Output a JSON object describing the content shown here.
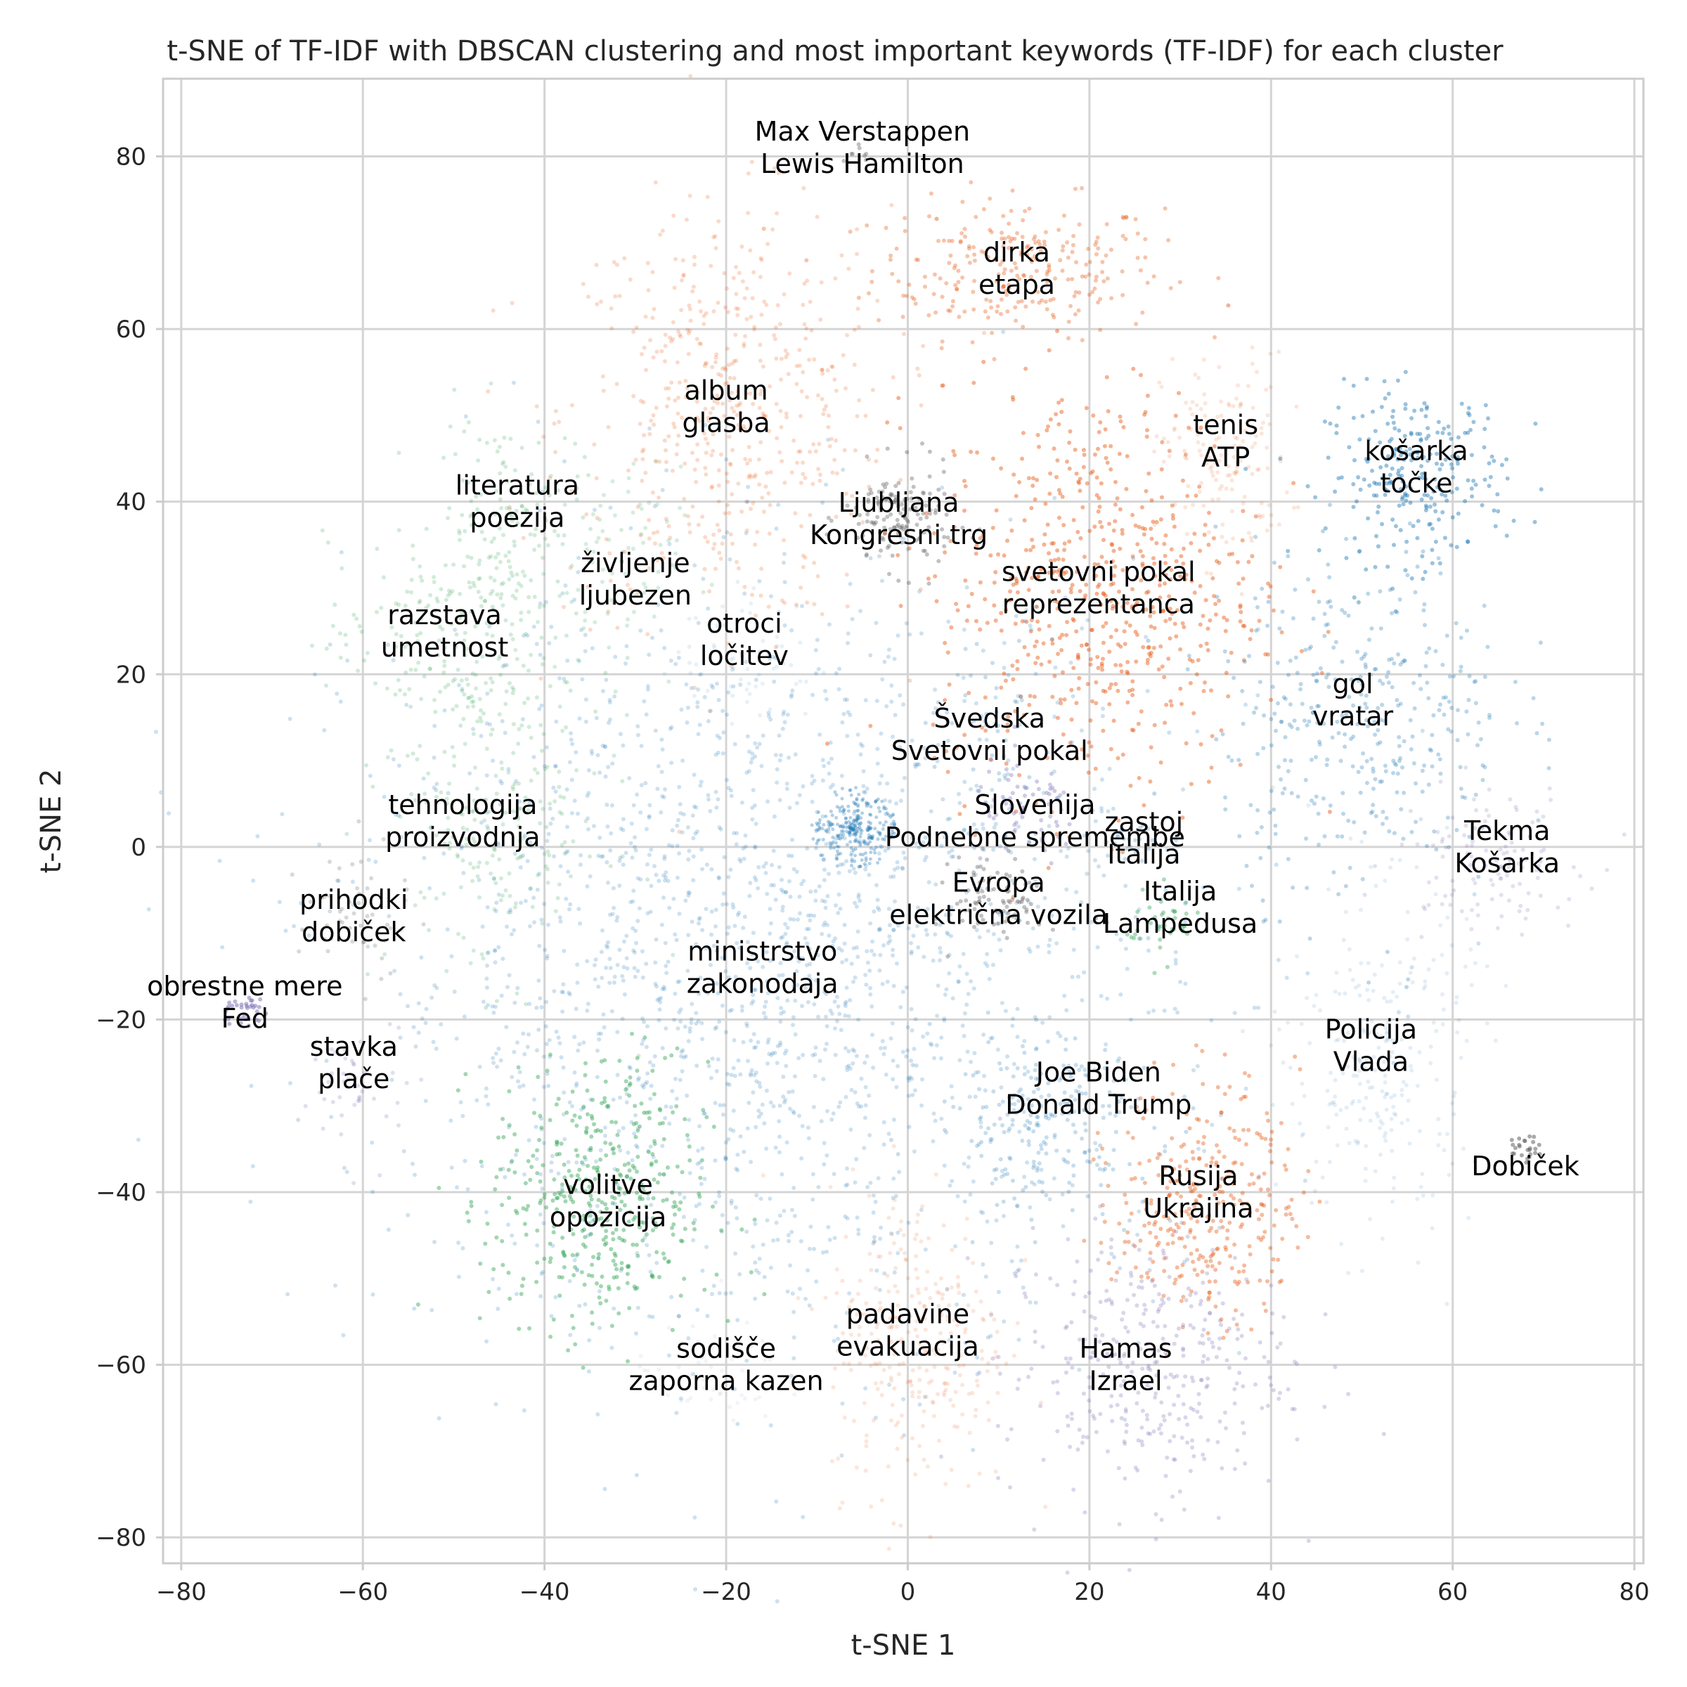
{
  "chart_data": {
    "type": "scatter",
    "title": "t-SNE of TF-IDF with DBSCAN clustering and most important keywords (TF-IDF) for each cluster",
    "xlabel": "t-SNE 1",
    "ylabel": "t-SNE 2",
    "xlim": [
      -82,
      81
    ],
    "ylim": [
      -83,
      89
    ],
    "xticks": [
      -80,
      -60,
      -40,
      -20,
      0,
      20,
      40,
      60,
      80
    ],
    "yticks": [
      -80,
      -60,
      -40,
      -20,
      0,
      20,
      40,
      60,
      80
    ],
    "grid": true,
    "colors": {
      "blue": "#1f77b4",
      "orange": "#e6550d",
      "green": "#31a354",
      "purple": "#756bb1",
      "gray": "#636363"
    },
    "clusters": [
      {
        "label": "Max Verstappen\nLewis Hamilton",
        "x": -5,
        "y": 80,
        "color": "gray",
        "spread": [
          1,
          1
        ],
        "n": 8,
        "alpha": 0.4
      },
      {
        "label": "dirka\netapa",
        "x": 12,
        "y": 67,
        "color": "orange",
        "spread": [
          8,
          4
        ],
        "n": 260,
        "alpha": 0.35
      },
      {
        "label": "album\nglasba",
        "x": -20,
        "y": 50,
        "color": "orange",
        "spread": [
          9,
          12
        ],
        "n": 520,
        "alpha": 0.22
      },
      {
        "label": "tenis\nATP",
        "x": 35,
        "y": 45,
        "color": "orange",
        "spread": [
          3.5,
          6
        ],
        "n": 150,
        "alpha": 0.15
      },
      {
        "label": "košarka\ntočke",
        "x": 56,
        "y": 43,
        "color": "blue",
        "spread": [
          5,
          5
        ],
        "n": 260,
        "alpha": 0.45
      },
      {
        "label": "Ljubljana\nKongresni trg",
        "x": -1,
        "y": 38,
        "color": "gray",
        "spread": [
          3,
          3
        ],
        "n": 140,
        "alpha": 0.4
      },
      {
        "label": "literatura\npoezija",
        "x": -44,
        "y": 38,
        "color": "green",
        "spread": [
          4,
          6
        ],
        "n": 140,
        "alpha": 0.22
      },
      {
        "label": "življenje\nljubezen",
        "x": -33,
        "y": 32,
        "color": "green",
        "spread": [
          4,
          6
        ],
        "n": 80,
        "alpha": 0.2
      },
      {
        "label": "svetovni pokal\nreprezentanca",
        "x": 21,
        "y": 30,
        "color": "orange",
        "spread": [
          9,
          12
        ],
        "n": 620,
        "alpha": 0.45
      },
      {
        "label": "razstava\numetnost",
        "x": -52,
        "y": 24,
        "color": "green",
        "spread": [
          6,
          6
        ],
        "n": 180,
        "alpha": 0.22
      },
      {
        "label": "otroci\nločitev",
        "x": -18,
        "y": 22,
        "color": "blue",
        "spread": [
          4,
          4
        ],
        "n": 60,
        "alpha": 0.1
      },
      {
        "label": "gol\nvratar",
        "x": 50,
        "y": 15,
        "color": "blue",
        "spread": [
          8,
          10
        ],
        "n": 380,
        "alpha": 0.3
      },
      {
        "label": "Švedska\nSvetovni pokal",
        "x": 9,
        "y": 13,
        "color": "blue",
        "spread": [
          4,
          4
        ],
        "n": 40,
        "alpha": 0.25
      },
      {
        "label": "Slovenija\nPodnebne spremembe",
        "x": 13,
        "y": 4,
        "color": "purple",
        "spread": [
          3,
          3
        ],
        "n": 70,
        "alpha": 0.35
      },
      {
        "label": "zastoj\nItalija",
        "x": 25,
        "y": 0,
        "color": "blue",
        "spread": [
          2,
          2
        ],
        "n": 20,
        "alpha": 0.25
      },
      {
        "label": "Tekma\nKošarka",
        "x": 64,
        "y": -1,
        "color": "purple",
        "spread": [
          5,
          4
        ],
        "n": 120,
        "alpha": 0.2
      },
      {
        "label": "tehnologija\nproizvodnja",
        "x": -45,
        "y": 3,
        "color": "green",
        "spread": [
          6,
          9
        ],
        "n": 220,
        "alpha": 0.22
      },
      {
        "label": "Evropa\nelektrična vozila",
        "x": 10,
        "y": -6,
        "color": "gray",
        "spread": [
          2.5,
          2.5
        ],
        "n": 90,
        "alpha": 0.4
      },
      {
        "label": "Italija\nLampedusa",
        "x": 28,
        "y": -9,
        "color": "green",
        "spread": [
          2,
          2
        ],
        "n": 40,
        "alpha": 0.4
      },
      {
        "label": "prihodki\ndobiček",
        "x": -61,
        "y": -8,
        "color": "gray",
        "spread": [
          3,
          4
        ],
        "n": 50,
        "alpha": 0.25
      },
      {
        "label": "ministrstvo\nzakonodaja",
        "x": -16,
        "y": -13,
        "color": "blue",
        "spread": [
          22,
          22
        ],
        "n": 2100,
        "alpha": 0.22
      },
      {
        "label": "obrestne mere\nFed",
        "x": -73,
        "y": -19,
        "color": "purple",
        "spread": [
          1.2,
          1
        ],
        "n": 35,
        "alpha": 0.5
      },
      {
        "label": "stavka\nplače",
        "x": -60,
        "y": -28,
        "color": "purple",
        "spread": [
          3,
          4
        ],
        "n": 45,
        "alpha": 0.22
      },
      {
        "label": "Policija\nVlada",
        "x": 52,
        "y": -25,
        "color": "blue",
        "spread": [
          5,
          10
        ],
        "n": 260,
        "alpha": 0.12
      },
      {
        "label": "Joe Biden\nDonald Trump",
        "x": 15,
        "y": -32,
        "color": "blue",
        "spread": [
          6,
          5
        ],
        "n": 220,
        "alpha": 0.25
      },
      {
        "label": "Dobiček",
        "x": 68,
        "y": -35,
        "color": "gray",
        "spread": [
          0.8,
          0.8
        ],
        "n": 25,
        "alpha": 0.55
      },
      {
        "label": "Rusija\nUkrajina",
        "x": 33,
        "y": -41,
        "color": "orange",
        "spread": [
          5,
          7
        ],
        "n": 320,
        "alpha": 0.4
      },
      {
        "label": "volitve\nopozicija",
        "x": -34,
        "y": -41,
        "color": "green",
        "spread": [
          6,
          8
        ],
        "n": 420,
        "alpha": 0.45
      },
      {
        "label": "padavine\nevakuacija",
        "x": 1,
        "y": -57,
        "color": "orange",
        "spread": [
          5,
          9
        ],
        "n": 280,
        "alpha": 0.15
      },
      {
        "label": "Hamas\nIzrael",
        "x": 26,
        "y": -60,
        "color": "purple",
        "spread": [
          8,
          8
        ],
        "n": 360,
        "alpha": 0.28
      },
      {
        "label": "sodišče\nzaporna kazen",
        "x": -22,
        "y": -61,
        "color": "purple",
        "spread": [
          4,
          3
        ],
        "n": 50,
        "alpha": 0.08
      }
    ]
  },
  "annotations": [
    {
      "lines": [
        "Max Verstappen",
        "Lewis Hamilton"
      ],
      "x": -5,
      "y": 81
    },
    {
      "lines": [
        "dirka",
        "etapa"
      ],
      "x": 12,
      "y": 67
    },
    {
      "lines": [
        "album",
        "glasba"
      ],
      "x": -20,
      "y": 51
    },
    {
      "lines": [
        "tenis",
        "ATP"
      ],
      "x": 35,
      "y": 47
    },
    {
      "lines": [
        "košarka",
        "točke"
      ],
      "x": 56,
      "y": 44
    },
    {
      "lines": [
        "literatura",
        "poezija"
      ],
      "x": -43,
      "y": 40
    },
    {
      "lines": [
        "Ljubljana",
        "Kongresni trg"
      ],
      "x": -1,
      "y": 38
    },
    {
      "lines": [
        "življenje",
        "ljubezen"
      ],
      "x": -30,
      "y": 31
    },
    {
      "lines": [
        "svetovni pokal",
        "reprezentanca"
      ],
      "x": 21,
      "y": 30
    },
    {
      "lines": [
        "razstava",
        "umetnost"
      ],
      "x": -51,
      "y": 25
    },
    {
      "lines": [
        "otroci",
        "ločitev"
      ],
      "x": -18,
      "y": 24
    },
    {
      "lines": [
        "gol",
        "vratar"
      ],
      "x": 49,
      "y": 17
    },
    {
      "lines": [
        "Švedska",
        "Svetovni pokal"
      ],
      "x": 9,
      "y": 13
    },
    {
      "lines": [
        "tehnologija",
        "proizvodnja"
      ],
      "x": -49,
      "y": 3
    },
    {
      "lines": [
        "Slovenija",
        "Podnebne spremembe"
      ],
      "x": 14,
      "y": 3
    },
    {
      "lines": [
        "zastoj",
        "Italija"
      ],
      "x": 26,
      "y": 1
    },
    {
      "lines": [
        "Tekma",
        "Košarka"
      ],
      "x": 66,
      "y": 0
    },
    {
      "lines": [
        "Evropa",
        "električna vozila"
      ],
      "x": 10,
      "y": -6
    },
    {
      "lines": [
        "Italija",
        "Lampedusa"
      ],
      "x": 30,
      "y": -7
    },
    {
      "lines": [
        "prihodki",
        "dobiček"
      ],
      "x": -61,
      "y": -8
    },
    {
      "lines": [
        "ministrstvo",
        "zakonodaja"
      ],
      "x": -16,
      "y": -14
    },
    {
      "lines": [
        "obrestne mere",
        "Fed"
      ],
      "x": -73,
      "y": -18
    },
    {
      "lines": [
        "Policija",
        "Vlada"
      ],
      "x": 51,
      "y": -23
    },
    {
      "lines": [
        "stavka",
        "plače"
      ],
      "x": -61,
      "y": -25
    },
    {
      "lines": [
        "Joe Biden",
        "Donald Trump"
      ],
      "x": 21,
      "y": -28
    },
    {
      "lines": [
        "Dobiček"
      ],
      "x": 68,
      "y": -37
    },
    {
      "lines": [
        "Rusija",
        "Ukrajina"
      ],
      "x": 32,
      "y": -40
    },
    {
      "lines": [
        "volitve",
        "opozicija"
      ],
      "x": -33,
      "y": -41
    },
    {
      "lines": [
        "padavine",
        "evakuacija"
      ],
      "x": 0,
      "y": -56
    },
    {
      "lines": [
        "Hamas",
        "Izrael"
      ],
      "x": 24,
      "y": -60
    },
    {
      "lines": [
        "sodišče",
        "zaporna kazen"
      ],
      "x": -20,
      "y": -60
    }
  ]
}
